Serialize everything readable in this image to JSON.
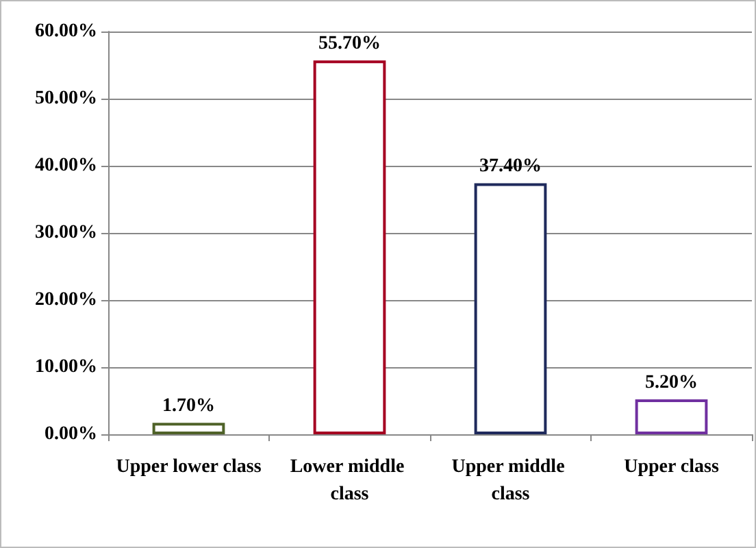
{
  "chart_data": {
    "type": "bar",
    "categories": [
      "Upper lower class",
      "Lower middle class",
      "Upper middle class",
      "Upper class"
    ],
    "values": [
      1.7,
      55.7,
      37.4,
      5.2
    ],
    "colors": [
      "#4f6228",
      "#a50021",
      "#1f2a5c",
      "#7030a0"
    ],
    "value_labels": [
      "1.70%",
      "55.70%",
      "37.40%",
      "5.20%"
    ],
    "ylim": [
      0,
      60
    ],
    "yticks": [
      {
        "value": 0,
        "label": "0.00%"
      },
      {
        "value": 10,
        "label": "10.00%"
      },
      {
        "value": 20,
        "label": "20.00%"
      },
      {
        "value": 30,
        "label": "30.00%"
      },
      {
        "value": 40,
        "label": "40.00%"
      },
      {
        "value": 50,
        "label": "50.00%"
      },
      {
        "value": 60,
        "label": "60.00%"
      }
    ],
    "grid": "y"
  }
}
